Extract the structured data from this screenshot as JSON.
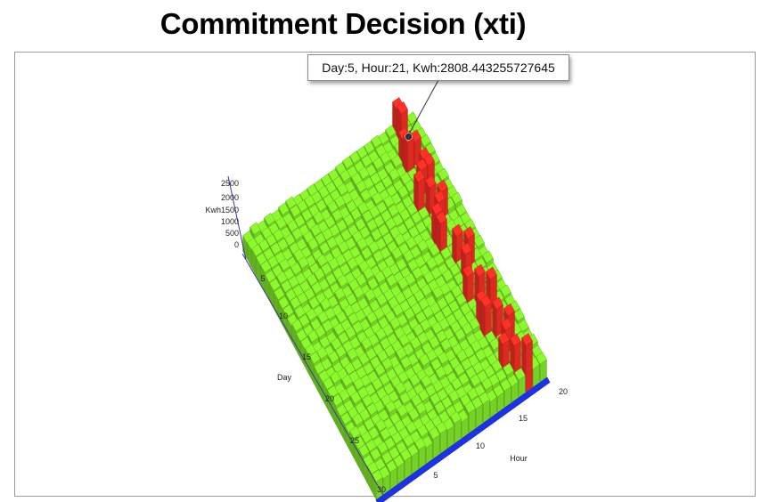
{
  "title": "Commitment Decision (xti)",
  "tooltip": "Day:5, Hour:21, Kwh:2808.443255727645",
  "chart_data": {
    "type": "bar3d",
    "title": "Commitment Decision (xti)",
    "zlabel": "Kwh",
    "xlabel": "Hour",
    "ylabel": "Day",
    "zticks": [
      2500,
      2000,
      1500,
      1000,
      500,
      0
    ],
    "ztick_labels": [
      "2500",
      "2000",
      "Kwh1500",
      "1000",
      "500",
      "0"
    ],
    "day_ticks": [
      5,
      10,
      15,
      20,
      25,
      30
    ],
    "hour_ticks": [
      5,
      10,
      15,
      20
    ],
    "zlim": [
      0,
      2800
    ],
    "hours": 24,
    "days": 30,
    "colors": {
      "base": "#7fe12a",
      "high": "#ee2d23",
      "axis": "#1c32e8"
    },
    "highlighted": {
      "day": 5,
      "hour": 21,
      "kwh": 2808.443255727645
    },
    "peak_bars": [
      {
        "day": 1,
        "hour": 22
      },
      {
        "day": 2,
        "hour": 22
      },
      {
        "day": 4,
        "hour": 21
      },
      {
        "day": 5,
        "hour": 21
      },
      {
        "day": 5,
        "hour": 22
      },
      {
        "day": 7,
        "hour": 22
      },
      {
        "day": 8,
        "hour": 21
      },
      {
        "day": 8,
        "hour": 22
      },
      {
        "day": 9,
        "hour": 20
      },
      {
        "day": 10,
        "hour": 21
      },
      {
        "day": 11,
        "hour": 22
      },
      {
        "day": 12,
        "hour": 21
      },
      {
        "day": 13,
        "hour": 20
      },
      {
        "day": 14,
        "hour": 20
      },
      {
        "day": 16,
        "hour": 21
      },
      {
        "day": 17,
        "hour": 22
      },
      {
        "day": 18,
        "hour": 21
      },
      {
        "day": 20,
        "hour": 20
      },
      {
        "day": 21,
        "hour": 21
      },
      {
        "day": 22,
        "hour": 22
      },
      {
        "day": 23,
        "hour": 20
      },
      {
        "day": 24,
        "hour": 20
      },
      {
        "day": 25,
        "hour": 21
      },
      {
        "day": 26,
        "hour": 22
      },
      {
        "day": 27,
        "hour": 21
      },
      {
        "day": 28,
        "hour": 20
      },
      {
        "day": 29,
        "hour": 21
      },
      {
        "day": 30,
        "hour": 22
      }
    ]
  }
}
